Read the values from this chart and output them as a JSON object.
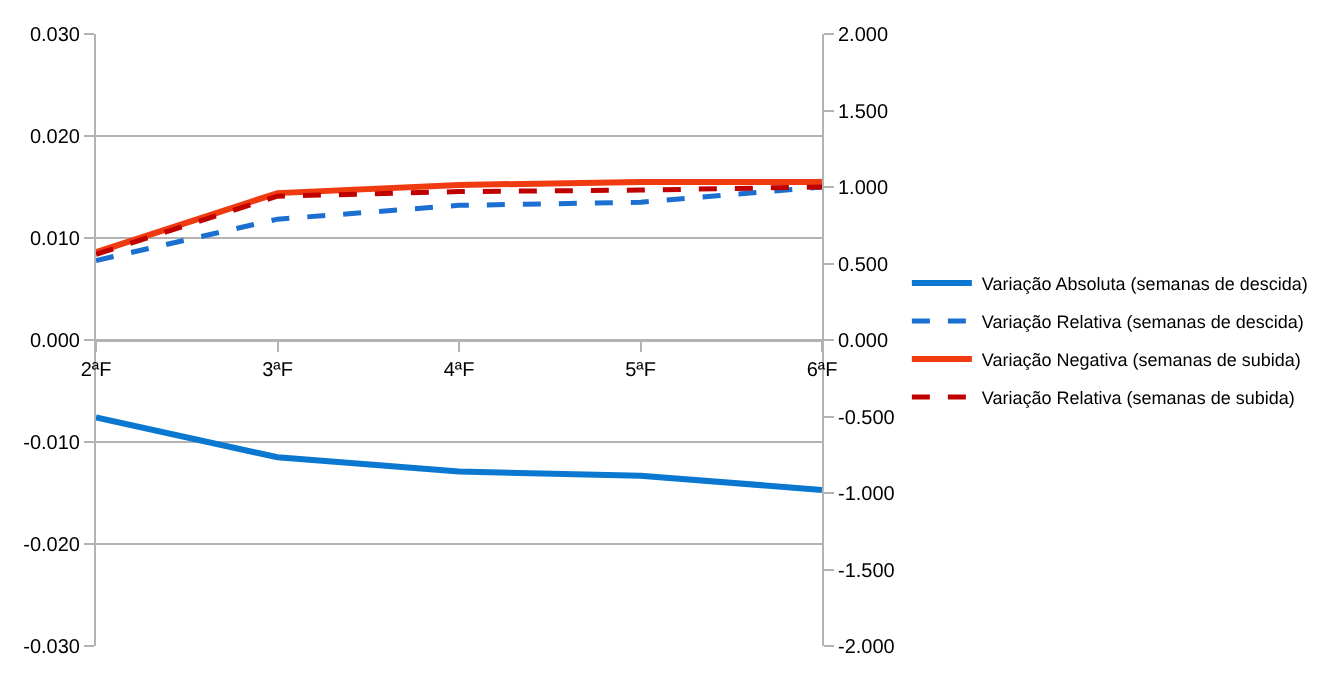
{
  "chart_data": {
    "type": "line",
    "categories": [
      "2ªF",
      "3ªF",
      "4ªF",
      "5ªF",
      "6ªF"
    ],
    "series": [
      {
        "name": "Variação Absoluta (semanas de descida)",
        "color": "#0a78d0",
        "values": [
          -0.0076,
          -0.0115,
          -0.0129,
          -0.0133,
          -0.0147
        ],
        "line_style": "solid"
      },
      {
        "name": "Variação Relativa (semanas de descida)",
        "color": "#1a6fd0",
        "values": [
          0.52,
          0.79,
          0.88,
          0.9,
          1.0
        ],
        "line_style": "dashed",
        "axis": "y2"
      },
      {
        "name": "Variação Negativa (semanas de subida)",
        "color": "#f03a10",
        "values": [
          0.0086,
          0.0144,
          0.0152,
          0.0155,
          0.0155
        ],
        "line_style": "solid"
      },
      {
        "name": "Variação Relativa (semanas de subida)",
        "color": "#c00000",
        "values": [
          0.56,
          0.94,
          0.97,
          0.98,
          1.0
        ],
        "line_style": "dashed",
        "axis": "y2"
      }
    ],
    "ylim": [
      -0.03,
      0.03
    ],
    "yticks": [
      {
        "value": -0.03,
        "label": "-0.030"
      },
      {
        "value": -0.02,
        "label": "-0.020"
      },
      {
        "value": -0.01,
        "label": "-0.010"
      },
      {
        "value": 0,
        "label": "0.000"
      },
      {
        "value": 0.01,
        "label": "0.010"
      },
      {
        "value": 0.02,
        "label": "0.020"
      },
      {
        "value": 0.03,
        "label": "0.030"
      }
    ],
    "y2lim": [
      -2,
      2
    ],
    "y2ticks": [
      {
        "value": -2,
        "label": "-2.000"
      },
      {
        "value": -1.5,
        "label": "-1.500"
      },
      {
        "value": -1,
        "label": "-1.000"
      },
      {
        "value": -0.5,
        "label": "-0.500"
      },
      {
        "value": 0,
        "label": "0.000"
      },
      {
        "value": 0.5,
        "label": "0.500"
      },
      {
        "value": 1,
        "label": "1.000"
      },
      {
        "value": 1.5,
        "label": "1.500"
      },
      {
        "value": 2,
        "label": "2.000"
      }
    ],
    "grid": "y",
    "legend": "right",
    "marker": "none"
  }
}
